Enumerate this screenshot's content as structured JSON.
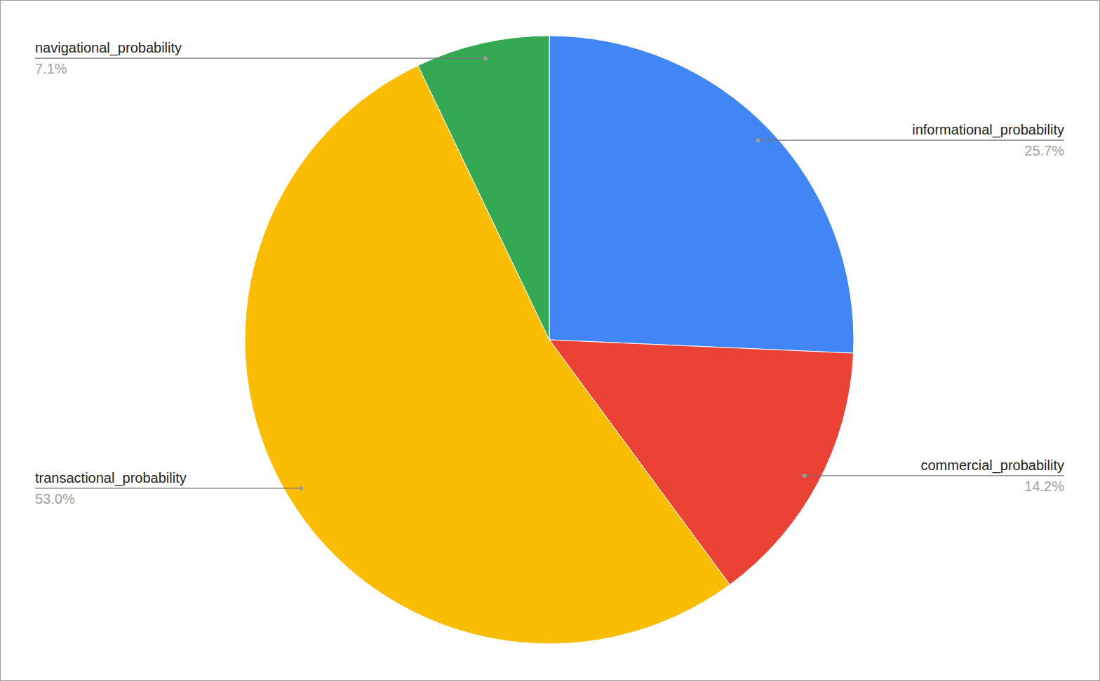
{
  "chart_data": {
    "type": "pie",
    "categories": [
      "informational_probability",
      "commercial_probability",
      "transactional_probability",
      "navigational_probability"
    ],
    "values": [
      25.7,
      14.2,
      53.0,
      7.1
    ],
    "value_labels": [
      "25.7%",
      "14.2%",
      "53.0%",
      "7.1%"
    ],
    "colors": [
      "#4285f4",
      "#ea4335",
      "#fbbc04",
      "#34a853"
    ],
    "data_labels": true
  }
}
